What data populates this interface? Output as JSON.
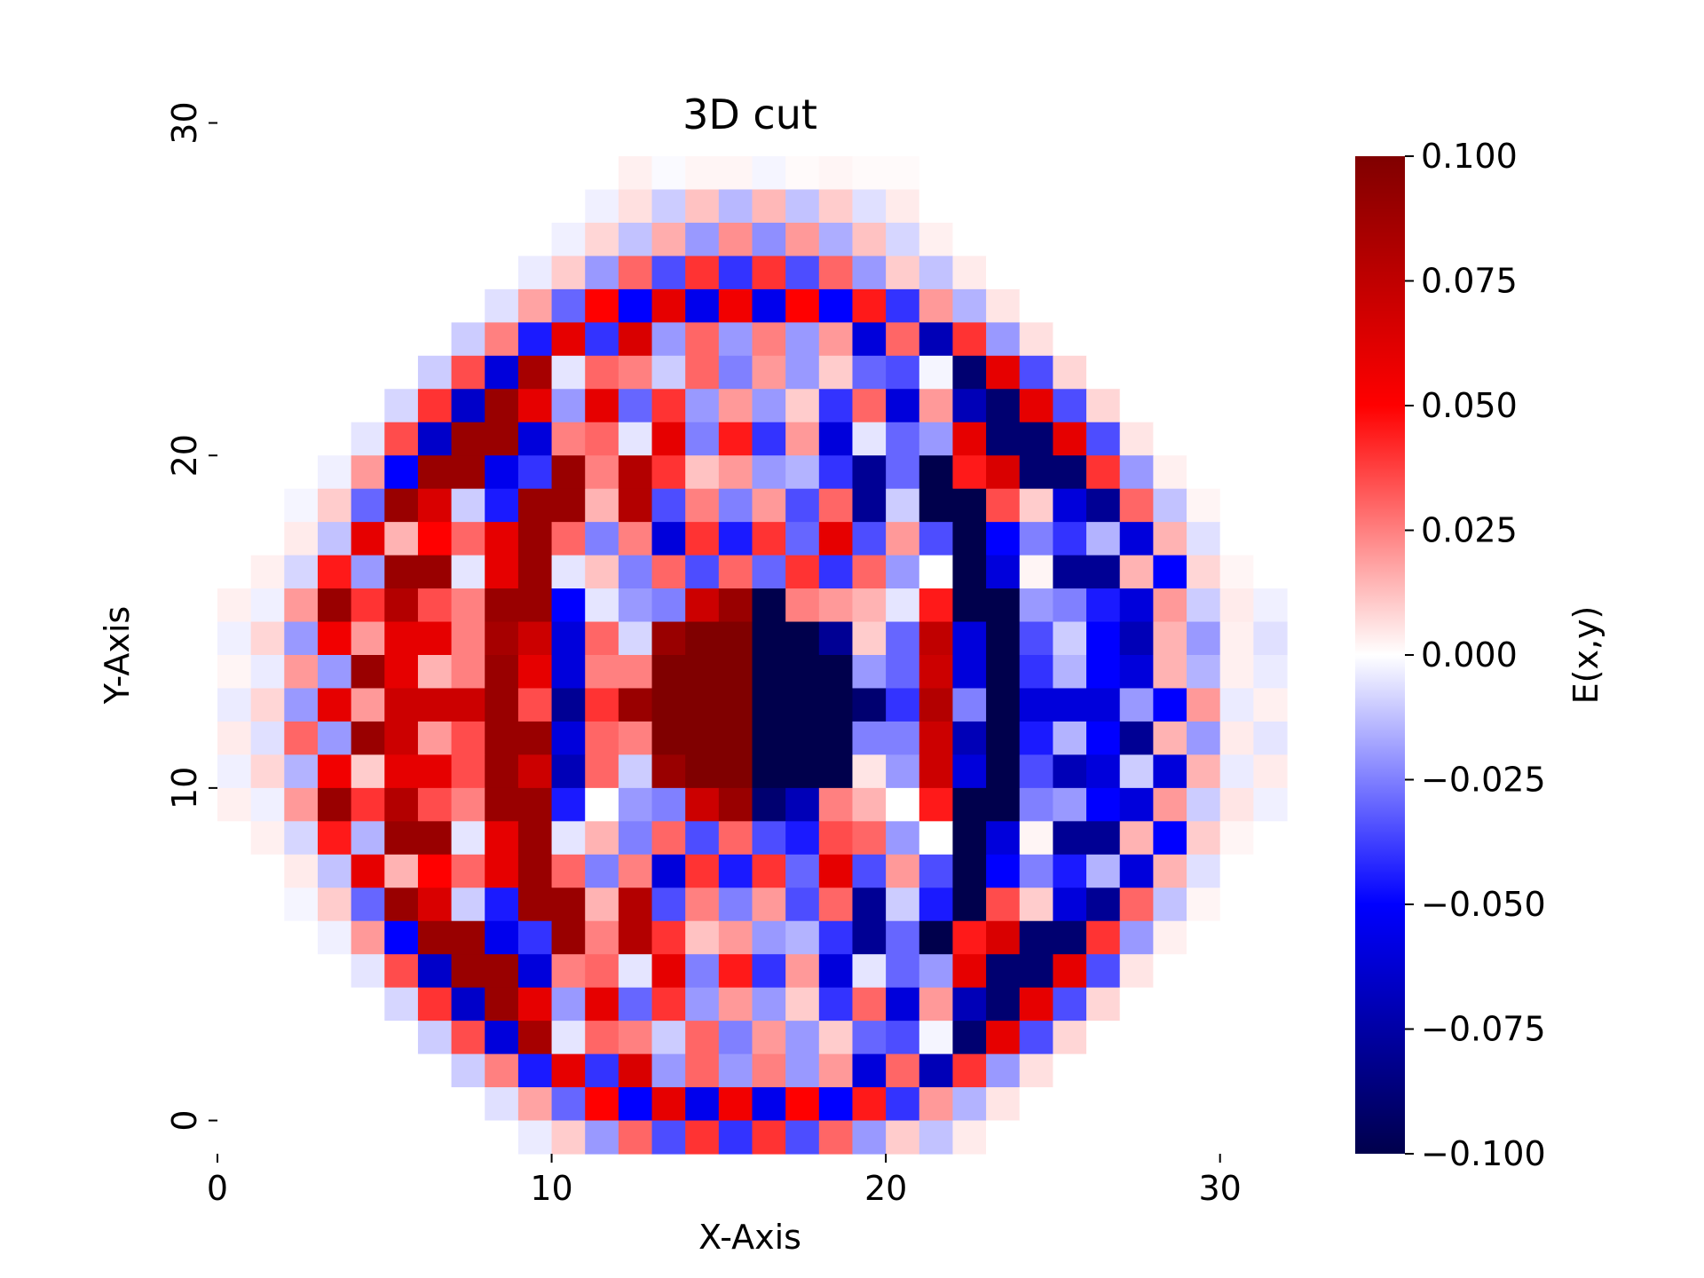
{
  "chart_data": {
    "type": "heatmap",
    "title": "3D cut",
    "xlabel": "X-Axis",
    "ylabel": "Y-Axis",
    "colorbar_label": "E(x,y)",
    "colormap": "seismic",
    "color_range": [
      -0.1,
      0.1
    ],
    "grid_size": [
      32,
      30
    ],
    "x_range": [
      0,
      32
    ],
    "y_range": [
      0,
      30
    ],
    "x_ticks": [
      0,
      10,
      20,
      30
    ],
    "y_ticks": [
      0,
      10,
      20,
      30
    ],
    "colorbar_ticks": [
      "0.100",
      "0.075",
      "0.050",
      "0.025",
      "0.000",
      "−0.025",
      "−0.050",
      "−0.075",
      "−0.100"
    ],
    "colorbar_tick_values": [
      0.1,
      0.075,
      0.05,
      0.025,
      0,
      -0.025,
      -0.05,
      -0.075,
      -0.1
    ],
    "value_note": "Cell values E(x,y) estimated from colors; rows listed from top (y=29) to bottom (y=0), x = 0..31",
    "values": [
      [
        0,
        0,
        0,
        0,
        0,
        0,
        0,
        0,
        0,
        0,
        0,
        0,
        0.003,
        -0.001,
        0.002,
        0.002,
        -0.002,
        0.001,
        0.002,
        0.001,
        0.001,
        0,
        0,
        0,
        0,
        0,
        0,
        0,
        0,
        0,
        0,
        0
      ],
      [
        0,
        0,
        0,
        0,
        0,
        0,
        0,
        0,
        0,
        0,
        0,
        -0.003,
        0.006,
        -0.01,
        0.012,
        -0.014,
        0.014,
        -0.012,
        0.01,
        -0.006,
        0.004,
        0,
        0,
        0,
        0,
        0,
        0,
        0,
        0,
        0,
        0,
        0
      ],
      [
        0,
        0,
        0,
        0,
        0,
        0,
        0,
        0,
        0,
        0,
        -0.003,
        0.008,
        -0.012,
        0.016,
        -0.02,
        0.022,
        -0.022,
        0.02,
        -0.016,
        0.012,
        -0.008,
        0.003,
        0,
        0,
        0,
        0,
        0,
        0,
        0,
        0,
        0,
        0
      ],
      [
        0,
        0,
        0,
        0,
        0,
        0,
        0,
        0,
        0,
        -0.004,
        0.01,
        -0.02,
        0.03,
        -0.035,
        0.04,
        -0.04,
        0.04,
        -0.035,
        0.03,
        -0.02,
        0.01,
        -0.012,
        0.004,
        0,
        0,
        0,
        0,
        0,
        0,
        0,
        0,
        0
      ],
      [
        0,
        0,
        0,
        0,
        0,
        0,
        0,
        0,
        -0.006,
        0.018,
        -0.03,
        0.05,
        -0.05,
        0.06,
        -0.055,
        0.055,
        -0.055,
        0.05,
        -0.05,
        0.045,
        -0.04,
        0.02,
        -0.015,
        0.005,
        0,
        0,
        0,
        0,
        0,
        0,
        0,
        0
      ],
      [
        0,
        0,
        0,
        0,
        0,
        0,
        0,
        -0.01,
        0.025,
        -0.045,
        0.06,
        -0.04,
        0.065,
        -0.02,
        0.03,
        -0.02,
        0.025,
        -0.02,
        0.02,
        -0.06,
        0.03,
        -0.07,
        0.04,
        -0.02,
        0.006,
        0,
        0,
        0,
        0,
        0,
        0,
        0
      ],
      [
        0,
        0,
        0,
        0,
        0,
        0,
        -0.01,
        0.035,
        -0.06,
        0.085,
        -0.005,
        0.03,
        0.025,
        -0.01,
        0.03,
        -0.025,
        0.02,
        -0.02,
        0.01,
        -0.03,
        -0.035,
        -0.002,
        -0.09,
        0.06,
        -0.035,
        0.008,
        0,
        0,
        0,
        0,
        0,
        0
      ],
      [
        0,
        0,
        0,
        0,
        0,
        -0.008,
        0.04,
        -0.065,
        0.09,
        0.06,
        -0.02,
        0.06,
        -0.03,
        0.04,
        -0.02,
        0.02,
        -0.02,
        0.01,
        -0.04,
        0.03,
        -0.06,
        0.02,
        -0.07,
        -0.09,
        0.06,
        -0.035,
        0.008,
        0,
        0,
        0,
        0,
        0
      ],
      [
        0,
        0,
        0,
        0,
        -0.005,
        0.035,
        -0.065,
        0.09,
        0.09,
        -0.06,
        0.025,
        0.03,
        -0.005,
        0.06,
        -0.025,
        0.045,
        -0.04,
        0.02,
        -0.06,
        -0.005,
        -0.03,
        -0.02,
        0.06,
        -0.09,
        -0.09,
        0.06,
        -0.035,
        0.005,
        0,
        0,
        0,
        0
      ],
      [
        0,
        0,
        0,
        -0.003,
        0.02,
        -0.05,
        0.09,
        0.09,
        -0.055,
        -0.04,
        0.09,
        0.025,
        0.08,
        0.04,
        0.012,
        0.02,
        -0.02,
        -0.015,
        -0.04,
        -0.08,
        -0.03,
        -0.1,
        0.045,
        0.065,
        -0.09,
        -0.09,
        0.04,
        -0.02,
        0.003,
        0,
        0,
        0
      ],
      [
        0,
        0,
        -0.002,
        0.01,
        -0.03,
        0.09,
        0.065,
        -0.01,
        -0.045,
        0.09,
        0.09,
        0.015,
        0.08,
        -0.035,
        0.025,
        -0.025,
        0.02,
        -0.035,
        0.03,
        -0.08,
        -0.01,
        -0.1,
        -0.1,
        0.035,
        0.01,
        -0.06,
        -0.08,
        0.03,
        -0.012,
        0.002,
        0,
        0
      ],
      [
        0,
        0,
        0.004,
        -0.012,
        0.06,
        0.015,
        0.05,
        0.03,
        0.06,
        0.09,
        0.03,
        -0.025,
        0.025,
        -0.06,
        0.04,
        -0.045,
        0.04,
        -0.03,
        0.06,
        -0.035,
        0.02,
        -0.035,
        -0.1,
        -0.05,
        -0.025,
        -0.04,
        -0.015,
        -0.06,
        0.015,
        -0.006,
        0,
        0
      ],
      [
        0,
        0.003,
        -0.008,
        0.045,
        -0.02,
        0.09,
        0.09,
        -0.005,
        0.06,
        0.09,
        -0.005,
        0.012,
        -0.025,
        0.03,
        -0.035,
        0.03,
        -0.03,
        0.04,
        -0.04,
        0.03,
        -0.02,
        0,
        -0.1,
        -0.06,
        0.002,
        -0.08,
        -0.08,
        0.015,
        -0.05,
        0.008,
        0.002,
        0
      ],
      [
        0.003,
        -0.003,
        0.02,
        0.09,
        0.04,
        0.08,
        0.035,
        0.025,
        0.09,
        0.09,
        -0.05,
        -0.005,
        -0.02,
        -0.025,
        0.07,
        0.09,
        -0.1,
        0.025,
        0.02,
        0.015,
        -0.005,
        0.045,
        -0.1,
        -0.1,
        -0.02,
        -0.025,
        -0.045,
        -0.06,
        0.02,
        -0.01,
        0.004,
        -0.003
      ],
      [
        -0.003,
        0.008,
        -0.02,
        0.055,
        0.02,
        0.06,
        0.06,
        0.025,
        0.085,
        0.07,
        -0.06,
        0.03,
        -0.008,
        0.09,
        0.1,
        0.1,
        -0.1,
        -0.1,
        -0.08,
        0.01,
        -0.03,
        0.075,
        -0.06,
        -0.1,
        -0.035,
        -0.01,
        -0.05,
        -0.07,
        0.015,
        -0.02,
        0.003,
        -0.006
      ],
      [
        0.002,
        -0.004,
        0.02,
        -0.02,
        0.09,
        0.06,
        0.015,
        0.025,
        0.09,
        0.06,
        -0.06,
        0.025,
        0.025,
        0.1,
        0.1,
        0.1,
        -0.1,
        -0.1,
        -0.1,
        -0.02,
        -0.03,
        0.07,
        -0.06,
        -0.1,
        -0.04,
        -0.015,
        -0.05,
        -0.06,
        0.015,
        -0.015,
        0.003,
        -0.004
      ],
      [
        -0.004,
        0.008,
        -0.02,
        0.06,
        0.02,
        0.07,
        0.07,
        0.07,
        0.09,
        0.035,
        -0.08,
        0.04,
        0.09,
        0.1,
        0.1,
        0.1,
        -0.1,
        -0.1,
        -0.1,
        -0.09,
        -0.04,
        0.08,
        -0.025,
        -0.1,
        -0.06,
        -0.06,
        -0.06,
        -0.02,
        -0.05,
        0.02,
        -0.004,
        0.003
      ],
      [
        0.004,
        -0.006,
        0.03,
        -0.02,
        0.09,
        0.07,
        0.02,
        0.035,
        0.09,
        0.09,
        -0.06,
        0.03,
        0.025,
        0.1,
        0.1,
        0.1,
        -0.1,
        -0.1,
        -0.1,
        -0.025,
        -0.025,
        0.07,
        -0.07,
        -0.1,
        -0.045,
        -0.015,
        -0.05,
        -0.08,
        0.015,
        -0.02,
        0.004,
        -0.005
      ],
      [
        -0.003,
        0.008,
        -0.015,
        0.055,
        0.01,
        0.06,
        0.06,
        0.035,
        0.09,
        0.07,
        -0.07,
        0.03,
        -0.01,
        0.09,
        0.1,
        0.1,
        -0.1,
        -0.1,
        -0.1,
        0.005,
        -0.02,
        0.07,
        -0.06,
        -0.1,
        -0.035,
        -0.07,
        -0.06,
        -0.01,
        -0.06,
        0.015,
        -0.004,
        0.004
      ],
      [
        0.003,
        -0.003,
        0.02,
        0.09,
        0.04,
        0.08,
        0.035,
        0.025,
        0.09,
        0.09,
        -0.045,
        0,
        -0.02,
        -0.025,
        0.07,
        0.09,
        -0.09,
        -0.07,
        0.025,
        0.015,
        0,
        0.045,
        -0.1,
        -0.1,
        -0.025,
        -0.02,
        -0.05,
        -0.06,
        0.02,
        -0.01,
        0.005,
        -0.003
      ],
      [
        0,
        0.003,
        -0.008,
        0.045,
        -0.015,
        0.09,
        0.09,
        -0.005,
        0.06,
        0.09,
        -0.005,
        0.015,
        -0.025,
        0.03,
        -0.035,
        0.03,
        -0.035,
        -0.045,
        0.035,
        0.03,
        -0.02,
        0,
        -0.1,
        -0.06,
        0.002,
        -0.08,
        -0.08,
        0.015,
        -0.05,
        0.01,
        0.002,
        0
      ],
      [
        0,
        0,
        0.004,
        -0.012,
        0.06,
        0.015,
        0.05,
        0.03,
        0.06,
        0.09,
        0.03,
        -0.025,
        0.025,
        -0.06,
        0.04,
        -0.045,
        0.04,
        -0.03,
        0.06,
        -0.035,
        0.02,
        -0.035,
        -0.1,
        -0.05,
        -0.025,
        -0.045,
        -0.015,
        -0.06,
        0.015,
        -0.006,
        0,
        0
      ],
      [
        0,
        0,
        -0.002,
        0.01,
        -0.03,
        0.09,
        0.065,
        -0.01,
        -0.045,
        0.09,
        0.09,
        0.015,
        0.08,
        -0.035,
        0.025,
        -0.025,
        0.02,
        -0.035,
        0.03,
        -0.08,
        -0.01,
        -0.045,
        -0.1,
        0.035,
        0.01,
        -0.06,
        -0.08,
        0.03,
        -0.012,
        0.002,
        0,
        0
      ],
      [
        0,
        0,
        0,
        -0.003,
        0.02,
        -0.05,
        0.09,
        0.09,
        -0.055,
        -0.04,
        0.09,
        0.025,
        0.08,
        0.04,
        0.012,
        0.02,
        -0.02,
        -0.015,
        -0.04,
        -0.08,
        -0.03,
        -0.1,
        0.045,
        0.065,
        -0.09,
        -0.09,
        0.04,
        -0.02,
        0.003,
        0,
        0,
        0
      ],
      [
        0,
        0,
        0,
        0,
        -0.005,
        0.035,
        -0.065,
        0.09,
        0.09,
        -0.06,
        0.025,
        0.03,
        -0.005,
        0.06,
        -0.025,
        0.045,
        -0.04,
        0.02,
        -0.06,
        -0.005,
        -0.03,
        -0.02,
        0.06,
        -0.09,
        -0.09,
        0.06,
        -0.035,
        0.005,
        0,
        0,
        0,
        0
      ],
      [
        0,
        0,
        0,
        0,
        0,
        -0.008,
        0.04,
        -0.065,
        0.09,
        0.06,
        -0.02,
        0.06,
        -0.03,
        0.04,
        -0.02,
        0.02,
        -0.02,
        0.01,
        -0.04,
        0.03,
        -0.06,
        0.02,
        -0.07,
        -0.09,
        0.06,
        -0.035,
        0.008,
        0,
        0,
        0,
        0,
        0
      ],
      [
        0,
        0,
        0,
        0,
        0,
        0,
        -0.01,
        0.035,
        -0.06,
        0.085,
        -0.005,
        0.03,
        0.025,
        -0.01,
        0.03,
        -0.025,
        0.02,
        -0.02,
        0.01,
        -0.03,
        -0.035,
        -0.002,
        -0.09,
        0.06,
        -0.035,
        0.008,
        0,
        0,
        0,
        0,
        0,
        0
      ],
      [
        0,
        0,
        0,
        0,
        0,
        0,
        0,
        -0.01,
        0.025,
        -0.045,
        0.06,
        -0.04,
        0.065,
        -0.02,
        0.03,
        -0.02,
        0.025,
        -0.02,
        0.02,
        -0.06,
        0.03,
        -0.07,
        0.04,
        -0.02,
        0.006,
        0,
        0,
        0,
        0,
        0,
        0,
        0
      ],
      [
        0,
        0,
        0,
        0,
        0,
        0,
        0,
        0,
        -0.006,
        0.018,
        -0.03,
        0.05,
        -0.05,
        0.06,
        -0.055,
        0.055,
        -0.055,
        0.05,
        -0.05,
        0.045,
        -0.04,
        0.02,
        -0.015,
        0.005,
        0,
        0,
        0,
        0,
        0,
        0,
        0,
        0
      ],
      [
        0,
        0,
        0,
        0,
        0,
        0,
        0,
        0,
        0,
        -0.004,
        0.01,
        -0.02,
        0.03,
        -0.035,
        0.04,
        -0.04,
        0.04,
        -0.035,
        0.03,
        -0.02,
        0.01,
        -0.012,
        0.004,
        0,
        0,
        0,
        0,
        0,
        0,
        0,
        0,
        0
      ]
    ]
  }
}
